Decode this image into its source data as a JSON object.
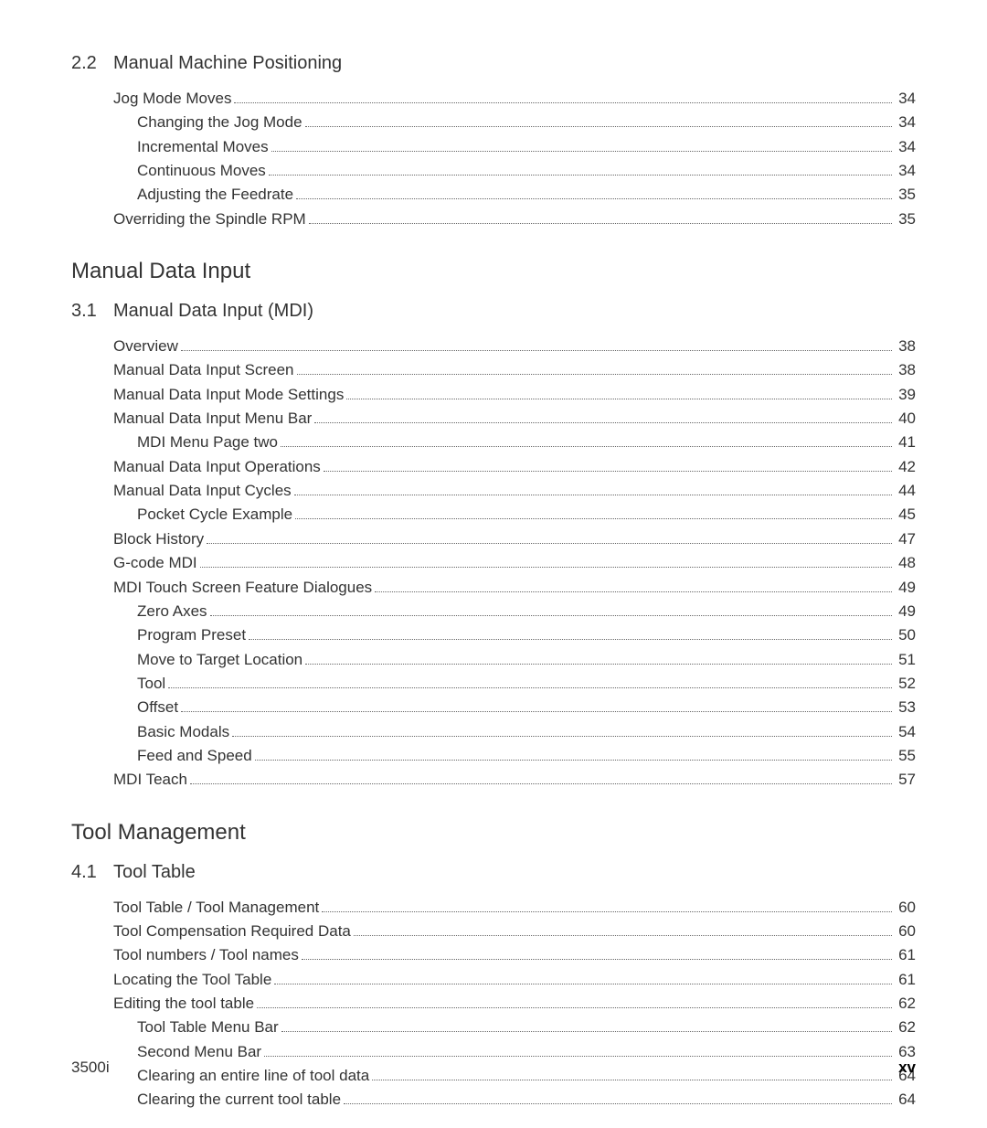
{
  "sections": [
    {
      "type": "section",
      "num": "2.2",
      "title": "Manual Machine Positioning",
      "entries": [
        {
          "title": "Jog Mode Moves",
          "page": "34",
          "indent": 0
        },
        {
          "title": "Changing the Jog Mode",
          "page": "34",
          "indent": 1
        },
        {
          "title": "Incremental Moves",
          "page": "34",
          "indent": 1
        },
        {
          "title": "Continuous Moves",
          "page": "34",
          "indent": 1
        },
        {
          "title": "Adjusting the Feedrate",
          "page": "35",
          "indent": 1
        },
        {
          "title": "Overriding the Spindle RPM",
          "page": "35",
          "indent": 0
        }
      ]
    },
    {
      "type": "chapter",
      "title": "Manual Data Input"
    },
    {
      "type": "section",
      "num": "3.1",
      "title": "Manual Data Input (MDI)",
      "entries": [
        {
          "title": "Overview",
          "page": "38",
          "indent": 0
        },
        {
          "title": "Manual Data Input Screen",
          "page": "38",
          "indent": 0
        },
        {
          "title": "Manual Data Input Mode Settings",
          "page": "39",
          "indent": 0
        },
        {
          "title": "Manual Data Input Menu Bar",
          "page": "40",
          "indent": 0
        },
        {
          "title": "MDI Menu Page two",
          "page": "41",
          "indent": 1
        },
        {
          "title": "Manual Data Input Operations",
          "page": "42",
          "indent": 0
        },
        {
          "title": "Manual Data Input Cycles",
          "page": "44",
          "indent": 0
        },
        {
          "title": "Pocket Cycle Example",
          "page": "45",
          "indent": 1
        },
        {
          "title": "Block History",
          "page": "47",
          "indent": 0
        },
        {
          "title": "G-code MDI",
          "page": "48",
          "indent": 0
        },
        {
          "title": "MDI Touch Screen Feature Dialogues",
          "page": "49",
          "indent": 0
        },
        {
          "title": "Zero Axes",
          "page": "49",
          "indent": 1
        },
        {
          "title": "Program Preset",
          "page": "50",
          "indent": 1
        },
        {
          "title": "Move to Target Location",
          "page": "51",
          "indent": 1
        },
        {
          "title": "Tool",
          "page": "52",
          "indent": 1
        },
        {
          "title": "Offset",
          "page": "53",
          "indent": 1
        },
        {
          "title": "Basic Modals",
          "page": "54",
          "indent": 1
        },
        {
          "title": "Feed and Speed",
          "page": "55",
          "indent": 1
        },
        {
          "title": "MDI Teach",
          "page": "57",
          "indent": 0
        }
      ]
    },
    {
      "type": "chapter",
      "title": "Tool Management"
    },
    {
      "type": "section",
      "num": "4.1",
      "title": "Tool Table",
      "entries": [
        {
          "title": "Tool Table / Tool Management",
          "page": "60",
          "indent": 0
        },
        {
          "title": "Tool Compensation Required Data",
          "page": "60",
          "indent": 0
        },
        {
          "title": "Tool numbers / Tool names",
          "page": "61",
          "indent": 0
        },
        {
          "title": "Locating the Tool Table",
          "page": "61",
          "indent": 0
        },
        {
          "title": "Editing the tool table",
          "page": "62",
          "indent": 0
        },
        {
          "title": "Tool Table Menu Bar",
          "page": "62",
          "indent": 1
        },
        {
          "title": "Second Menu Bar",
          "page": "63",
          "indent": 1
        },
        {
          "title": "Clearing an entire line of tool data",
          "page": "64",
          "indent": 1
        },
        {
          "title": "Clearing the current tool table",
          "page": "64",
          "indent": 1
        }
      ]
    }
  ],
  "footer": {
    "left": "3500i",
    "right": "xv"
  }
}
